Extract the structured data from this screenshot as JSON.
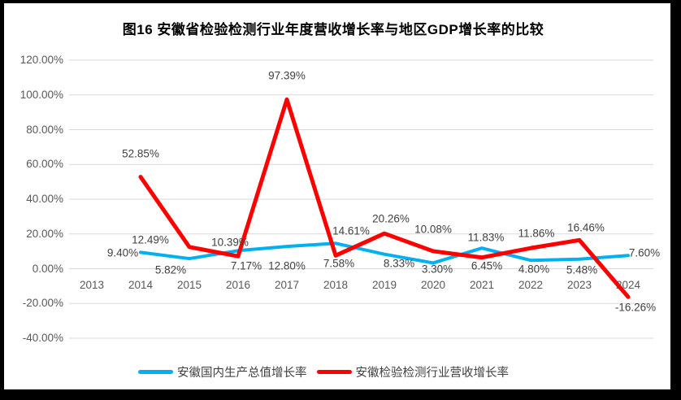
{
  "title": "图16 安徽省检验检测行业年度营收增长率与地区GDP增长率的比较",
  "colors": {
    "gdp_line": "#00B0F0",
    "industry_line": "#FF0000",
    "gridline": "#D9D9D9",
    "axis_text": "#595959",
    "data_label_text": "#404040",
    "frame": "#000000",
    "background": "#FFFFFF"
  },
  "chart_data": {
    "type": "line",
    "title": "图16 安徽省检验检测行业年度营收增长率与地区GDP增长率的比较",
    "categories": [
      "2013",
      "2014",
      "2015",
      "2016",
      "2017",
      "2018",
      "2019",
      "2020",
      "2021",
      "2022",
      "2023",
      "2024"
    ],
    "series": [
      {
        "key": "gdp",
        "name": "安徽国内生产总值增长率",
        "color": "#00B0F0",
        "values": [
          null,
          9.4,
          5.82,
          10.39,
          12.8,
          14.61,
          8.33,
          3.3,
          11.83,
          4.8,
          5.48,
          7.6
        ],
        "labels": [
          null,
          "9.40%",
          "5.82%",
          "10.39%",
          "12.80%",
          "14.61%",
          "8.33%",
          "3.30%",
          "11.83%",
          "4.80%",
          "5.48%",
          "7.60%"
        ]
      },
      {
        "key": "industry",
        "name": "安徽检验检测行业营收增长率",
        "color": "#FF0000",
        "values": [
          null,
          52.85,
          12.49,
          7.17,
          97.39,
          7.58,
          20.26,
          10.08,
          6.45,
          11.86,
          16.46,
          -16.26
        ],
        "labels": [
          null,
          "52.85%",
          "12.49%",
          "7.17%",
          "97.39%",
          "7.58%",
          "20.26%",
          "10.08%",
          "6.45%",
          "11.86%",
          "16.46%",
          "-16.26%"
        ]
      }
    ],
    "y_axis": {
      "min": -40,
      "max": 120,
      "step": 20,
      "tick_labels": [
        "120.00%",
        "100.00%",
        "80.00%",
        "60.00%",
        "40.00%",
        "20.00%",
        "0.00%",
        "-20.00%",
        "-40.00%"
      ]
    },
    "x_axis": {
      "label": ""
    },
    "grid": "horizontal",
    "legend_position": "bottom",
    "legend": [
      "安徽国内生产总值增长率",
      "安徽检验检测行业营收增长率"
    ]
  }
}
